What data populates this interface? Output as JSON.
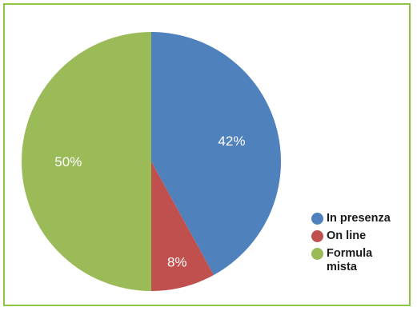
{
  "chart_data": {
    "type": "pie",
    "title": "",
    "slices": [
      {
        "name": "In presenza",
        "value": 42,
        "label": "42%",
        "color": "#4f81bd"
      },
      {
        "name": "On line",
        "value": 8,
        "label": "8%",
        "color": "#c0504d"
      },
      {
        "name": "Formula mista",
        "value": 50,
        "label": "50%",
        "color": "#9bbb59"
      }
    ],
    "legend_position": "bottom-right"
  },
  "colors": {
    "frame_border": "#8cc63e",
    "background": "#ffffff",
    "label_text": "#ffffff"
  }
}
